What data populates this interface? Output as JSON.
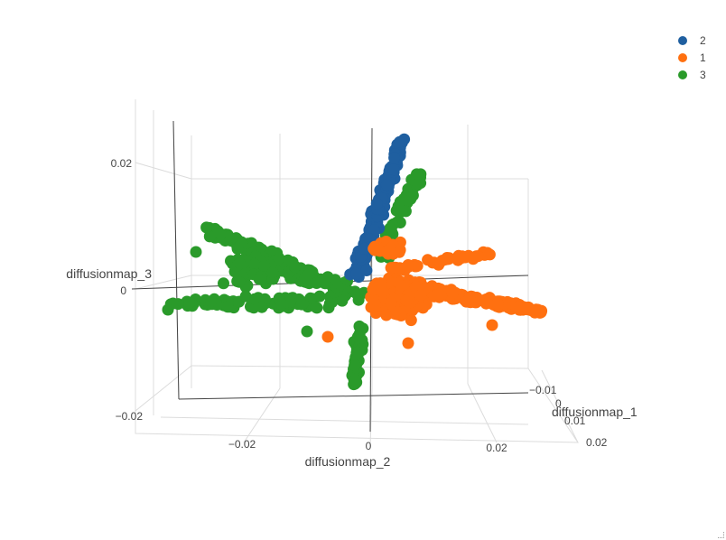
{
  "chart_data": {
    "type": "scatter",
    "title": "",
    "axes": {
      "x": {
        "label": "diffusionmap_1",
        "ticks": [
          "−0.01",
          "0",
          "0.01",
          "0.02"
        ]
      },
      "y": {
        "label": "diffusionmap_2",
        "ticks": [
          "−0.02",
          "0",
          "0.02"
        ]
      },
      "z": {
        "label": "diffusionmap_3",
        "ticks": [
          "0.02",
          "0",
          "−0.02"
        ]
      }
    },
    "legend_position": "top-right",
    "series": [
      {
        "name": "2",
        "color": "#1f5fa0"
      },
      {
        "name": "1",
        "color": "#ff7010"
      },
      {
        "name": "3",
        "color": "#2a9a2a"
      }
    ]
  }
}
